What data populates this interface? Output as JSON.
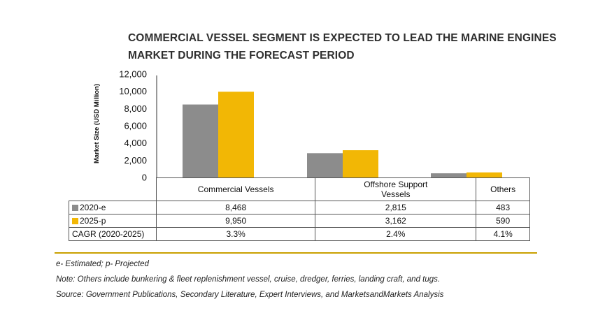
{
  "title": "COMMERCIAL VESSEL SEGMENT IS EXPECTED TO LEAD THE MARINE ENGINES MARKET DURING THE FORECAST PERIOD",
  "colors": {
    "series_2020": "#8c8c8c",
    "series_2025": "#f2b705",
    "divider": "#c9a000",
    "axis": "#333333"
  },
  "chart_data": {
    "type": "bar",
    "title": "COMMERCIAL VESSEL SEGMENT IS EXPECTED TO LEAD THE MARINE ENGINES MARKET DURING THE FORECAST PERIOD",
    "ylabel": "Market Size (USD Million)",
    "xlabel": "",
    "ylim": [
      0,
      12000
    ],
    "yticks": [
      "12,000",
      "10,000",
      "8,000",
      "6,000",
      "4,000",
      "2,000",
      "0"
    ],
    "categories": [
      "Commercial Vessels",
      "Offshore Support Vessels",
      "Others"
    ],
    "series": [
      {
        "name": "2020-e",
        "values": [
          8468,
          2815,
          483
        ],
        "labels": [
          "8,468",
          "2,815",
          "483"
        ]
      },
      {
        "name": "2025-p",
        "values": [
          9950,
          3162,
          590
        ],
        "labels": [
          "9,950",
          "3,162",
          "590"
        ]
      }
    ],
    "cagr_label": "CAGR (2020-2025)",
    "cagr": [
      "3.3%",
      "2.4%",
      "4.1%"
    ],
    "grid": false,
    "legend": "table rows below chart"
  },
  "notes": {
    "estimated": "e- Estimated; p- Projected",
    "others": "Note: Others include bunkering & fleet replenishment vessel, cruise, dredger, ferries, landing craft, and tugs.",
    "source": "Source: Government Publications, Secondary Literature, Expert Interviews, and MarketsandMarkets Analysis"
  }
}
